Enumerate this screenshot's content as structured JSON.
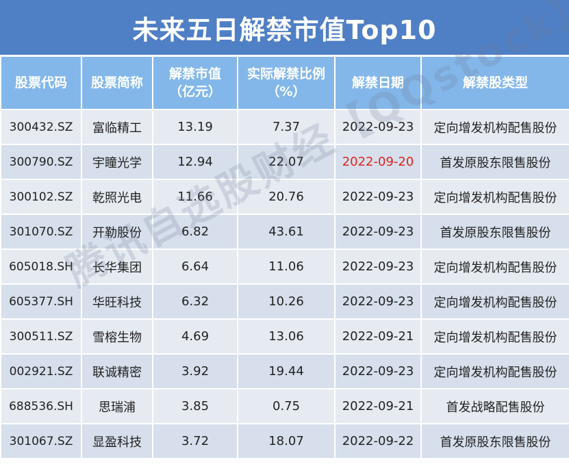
{
  "title": "未来五日解禁市值Top10",
  "columns": [
    {
      "line1": "股票代码",
      "line2": ""
    },
    {
      "line1": "股票简称",
      "line2": ""
    },
    {
      "line1": "解禁市值",
      "line2": "（亿元）"
    },
    {
      "line1": "实际解禁比例",
      "line2": "（%）"
    },
    {
      "line1": "解禁日期",
      "line2": ""
    },
    {
      "line1": "解禁股类型",
      "line2": ""
    }
  ],
  "rows": [
    {
      "code": "300432.SZ",
      "name": "富临精工",
      "value": "13.19",
      "ratio": "7.37",
      "date": "2022-09-23",
      "type": "定向增发机构配售股份",
      "date_red": false
    },
    {
      "code": "300790.SZ",
      "name": "宇瞳光学",
      "value": "12.94",
      "ratio": "22.07",
      "date": "2022-09-20",
      "type": "首发原股东限售股份",
      "date_red": true
    },
    {
      "code": "300102.SZ",
      "name": "乾照光电",
      "value": "11.66",
      "ratio": "20.76",
      "date": "2022-09-23",
      "type": "定向增发机构配售股份",
      "date_red": false
    },
    {
      "code": "301070.SZ",
      "name": "开勒股份",
      "value": "6.82",
      "ratio": "43.61",
      "date": "2022-09-23",
      "type": "首发原股东限售股份",
      "date_red": false
    },
    {
      "code": "605018.SH",
      "name": "长华集团",
      "value": "6.64",
      "ratio": "11.06",
      "date": "2022-09-23",
      "type": "定向增发机构配售股份",
      "date_red": false
    },
    {
      "code": "605377.SH",
      "name": "华旺科技",
      "value": "6.32",
      "ratio": "10.26",
      "date": "2022-09-23",
      "type": "定向增发机构配售股份",
      "date_red": false
    },
    {
      "code": "300511.SZ",
      "name": "雪榕生物",
      "value": "4.69",
      "ratio": "13.06",
      "date": "2022-09-21",
      "type": "定向增发机构配售股份",
      "date_red": false
    },
    {
      "code": "002921.SZ",
      "name": "联诚精密",
      "value": "3.92",
      "ratio": "19.44",
      "date": "2022-09-23",
      "type": "定向增发机构配售股份",
      "date_red": false
    },
    {
      "code": "688536.SH",
      "name": "思瑞浦",
      "value": "3.85",
      "ratio": "0.75",
      "date": "2022-09-21",
      "type": "首发战略配售股份",
      "date_red": false
    },
    {
      "code": "301067.SZ",
      "name": "显盈科技",
      "value": "3.72",
      "ratio": "18.07",
      "date": "2022-09-22",
      "type": "首发原股东限售股份",
      "date_red": false
    }
  ],
  "watermark": "腾讯自选股财经【QQstock】",
  "colors": {
    "title_bg": "#4f7fc5",
    "header_bg": "#83b7ea",
    "row_odd": "#e6ebf2",
    "row_even": "#d6dfeb",
    "date_highlight": "#e2231a"
  }
}
